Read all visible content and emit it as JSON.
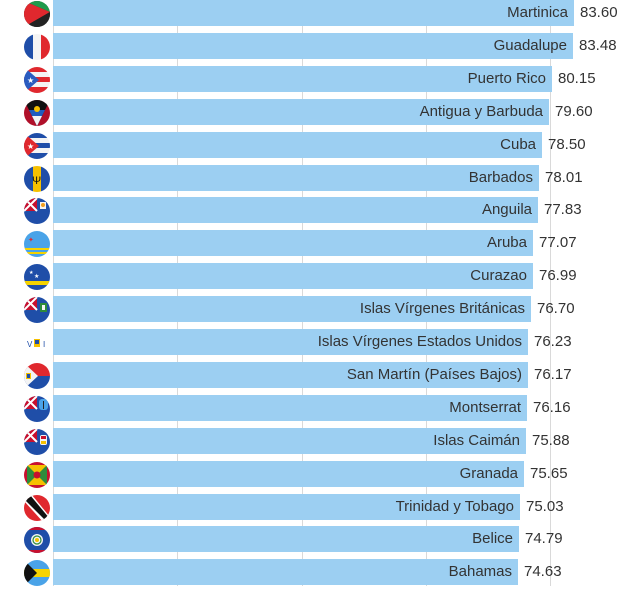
{
  "chart_data": {
    "type": "bar",
    "orientation": "horizontal",
    "title": "",
    "xlabel": "",
    "ylabel": "",
    "xlim": [
      0,
      90
    ],
    "grid": true,
    "gridlines_at": [
      0,
      20,
      40,
      60,
      80
    ],
    "bar_color": "#9ccff2",
    "categories": [
      "Martinica",
      "Guadalupe",
      "Puerto Rico",
      "Antigua y Barbuda",
      "Cuba",
      "Barbados",
      "Anguila",
      "Aruba",
      "Curazao",
      "Islas Vírgenes Británicas",
      "Islas Vírgenes Estados Unidos",
      "San Martín (Países Bajos)",
      "Montserrat",
      "Islas Caimán",
      "Granada",
      "Trinidad y Tobago",
      "Belice",
      "Bahamas"
    ],
    "values": [
      83.6,
      83.48,
      80.15,
      79.6,
      78.5,
      78.01,
      77.83,
      77.07,
      76.99,
      76.7,
      76.23,
      76.17,
      76.16,
      75.88,
      75.65,
      75.03,
      74.79,
      74.63
    ],
    "value_labels": [
      "83.60",
      "83.48",
      "80.15",
      "79.60",
      "78.50",
      "78.01",
      "77.83",
      "77.07",
      "76.99",
      "76.70",
      "76.23",
      "76.17",
      "76.16",
      "75.88",
      "75.65",
      "75.03",
      "74.79",
      "74.63"
    ],
    "flags": [
      "martinique-flag-icon",
      "france-flag-icon",
      "puerto-rico-flag-icon",
      "antigua-barbuda-flag-icon",
      "cuba-flag-icon",
      "barbados-flag-icon",
      "anguilla-flag-icon",
      "aruba-flag-icon",
      "curacao-flag-icon",
      "british-virgin-islands-flag-icon",
      "us-virgin-islands-flag-icon",
      "sint-maarten-flag-icon",
      "montserrat-flag-icon",
      "cayman-islands-flag-icon",
      "grenada-flag-icon",
      "trinidad-tobago-flag-icon",
      "belize-flag-icon",
      "bahamas-flag-icon"
    ]
  }
}
